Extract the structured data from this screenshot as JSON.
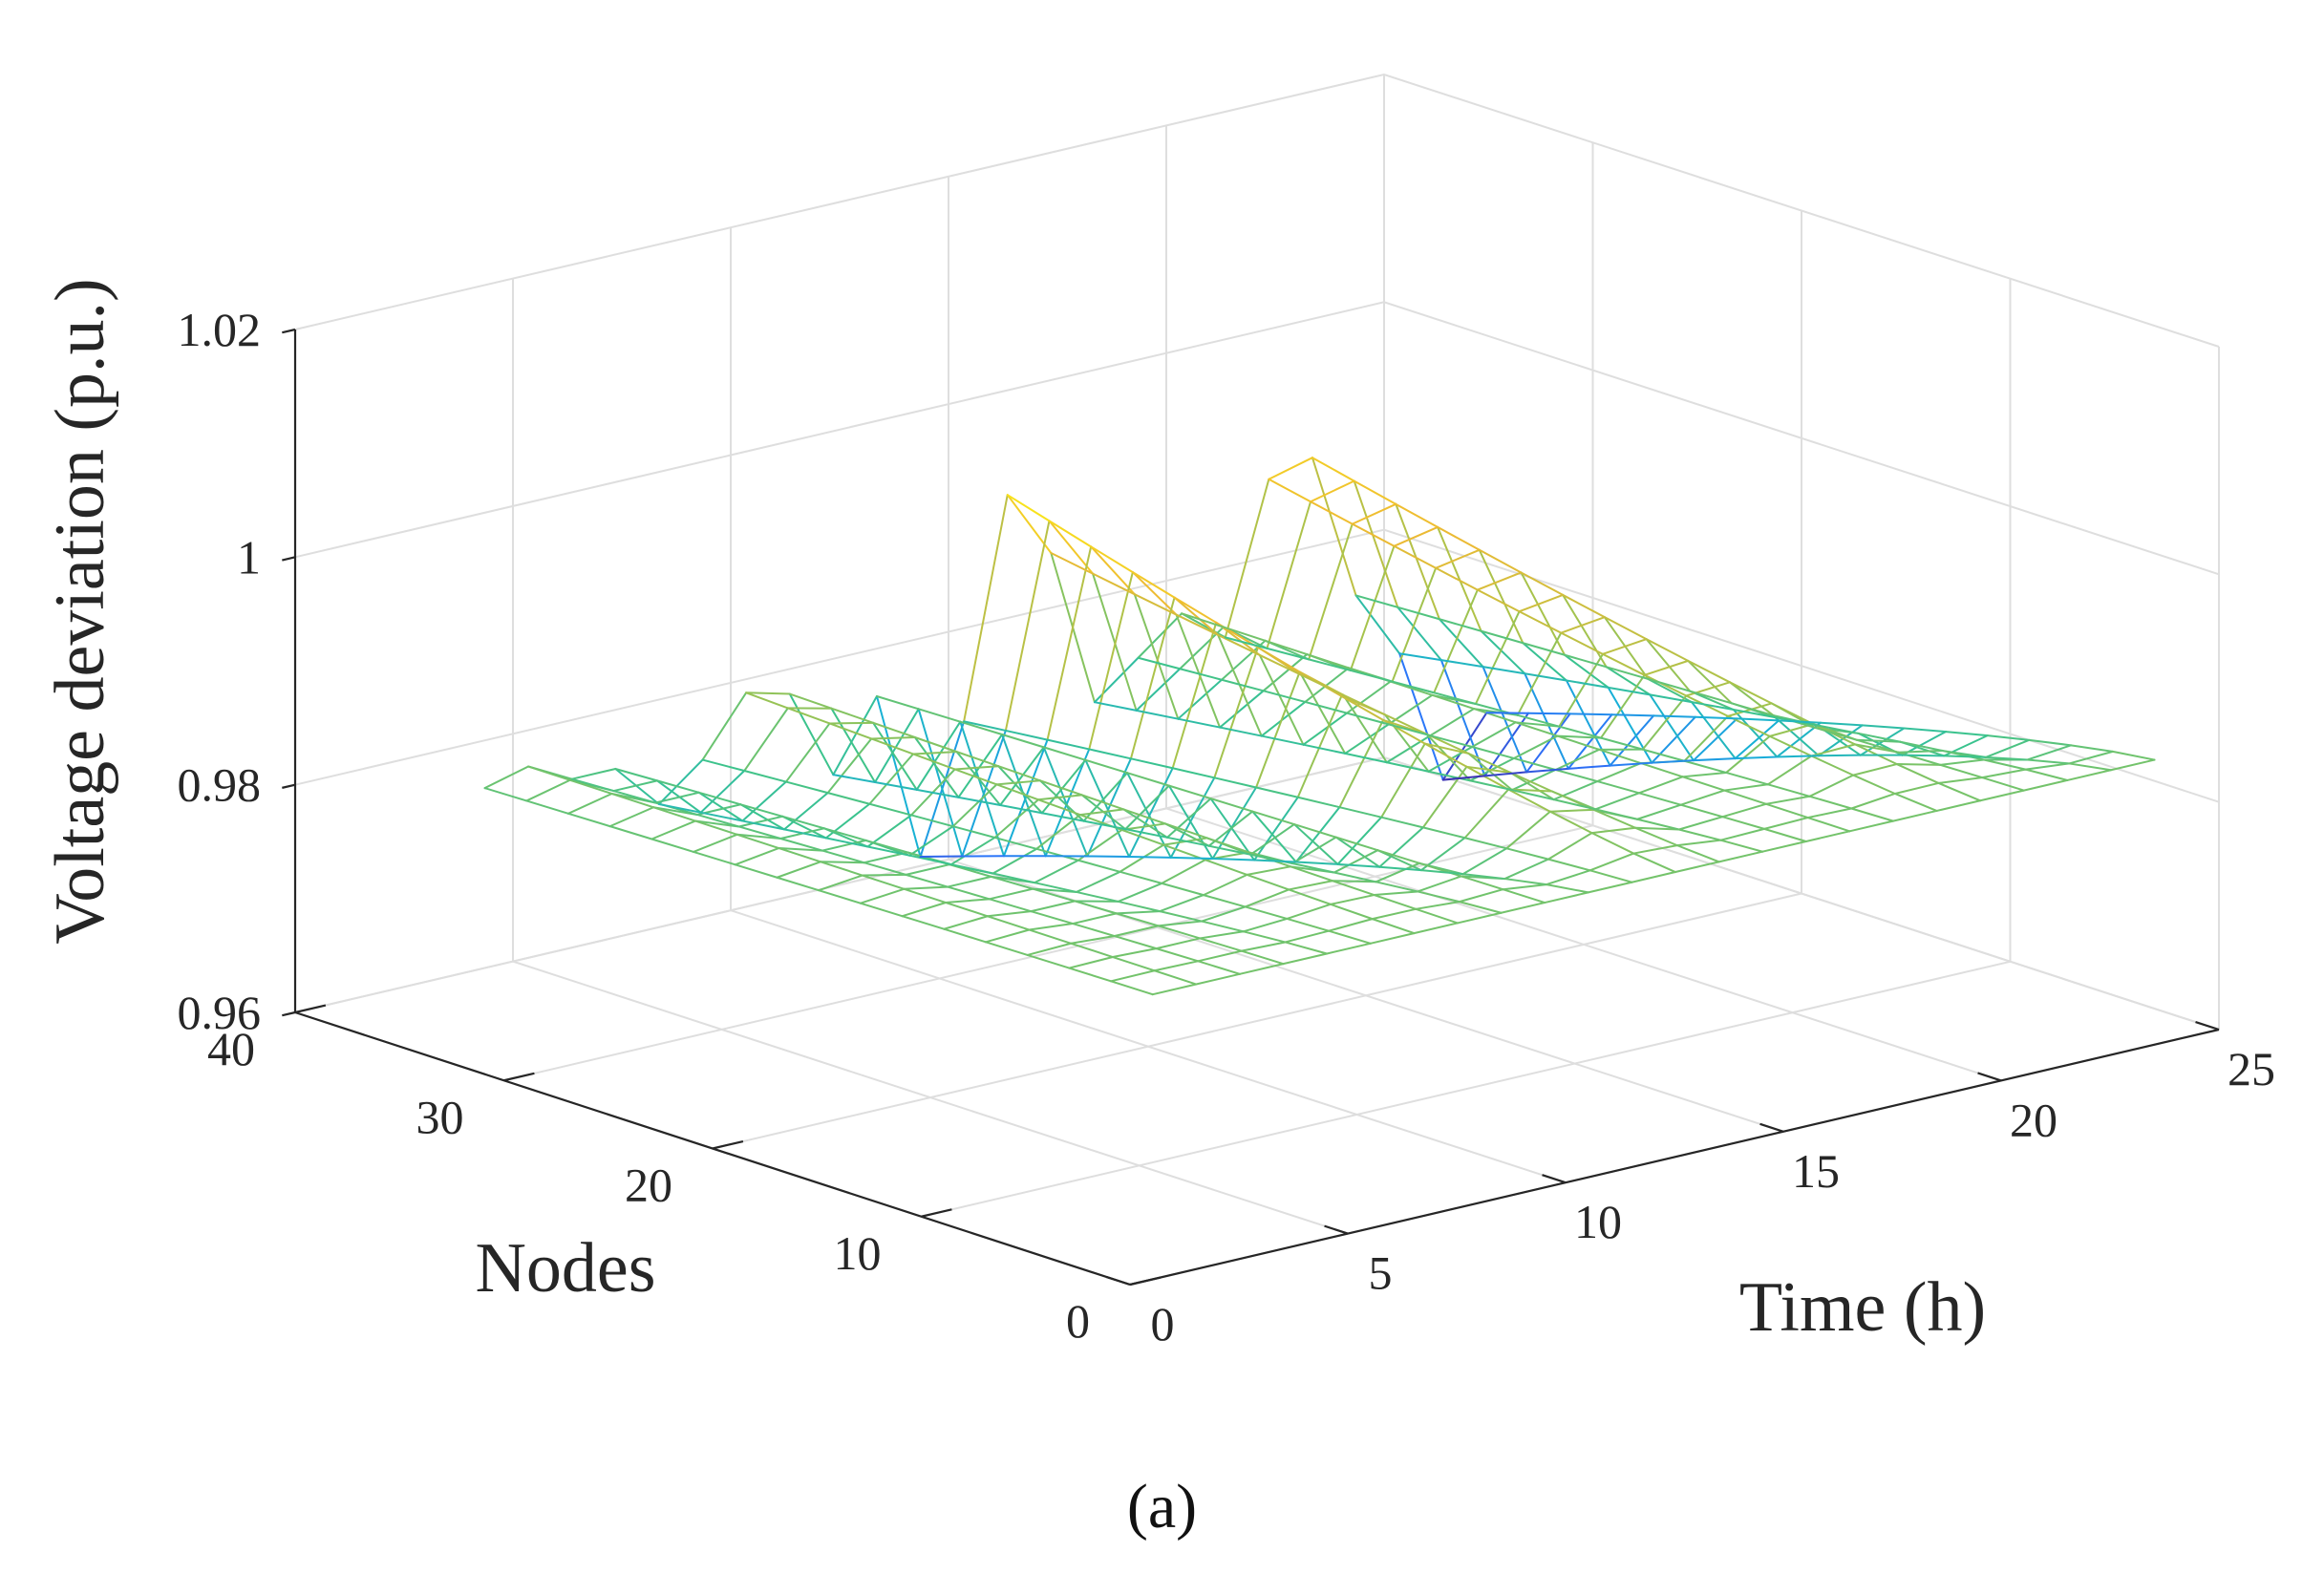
{
  "chart_data": {
    "type": "surface-mesh",
    "title": "",
    "xlabel": "Time (h)",
    "ylabel": "Nodes",
    "zlabel": "Voltage deviation (p.u.)",
    "xlim": [
      0,
      25
    ],
    "ylim": [
      0,
      40
    ],
    "zlim": [
      0.96,
      1.02
    ],
    "xticks": [
      0,
      5,
      10,
      15,
      20,
      25
    ],
    "yticks": [
      0,
      10,
      20,
      30,
      40
    ],
    "zticks": [
      0.96,
      0.98,
      1,
      1.02
    ],
    "xtick_labels": [
      "0",
      "5",
      "10",
      "15",
      "20",
      "25"
    ],
    "ytick_labels": [
      "0",
      "10",
      "20",
      "30",
      "40"
    ],
    "ztick_labels": [
      "0.96",
      "0.98",
      "1",
      "1.02"
    ],
    "grid": true,
    "colormap": "parula",
    "colors": [
      "#3e26a8",
      "#2c73fa",
      "#17b0d6",
      "#3bc38d",
      "#a6c34c",
      "#eeba32",
      "#f9e619"
    ],
    "hours": [
      1,
      2,
      3,
      4,
      5,
      6,
      7,
      8,
      9,
      10,
      11,
      12,
      13,
      14,
      15,
      16,
      17,
      18,
      19,
      20,
      21,
      22,
      23,
      24
    ],
    "nodes_range": [
      1,
      33
    ],
    "voltage_node1": [
      0.984,
      0.984,
      0.984,
      0.984,
      0.984,
      0.984,
      0.984,
      0.984,
      0.984,
      0.984,
      0.984,
      0.984,
      0.984,
      0.984,
      0.984,
      0.984,
      0.984,
      0.984,
      0.984,
      0.984,
      0.984,
      0.984,
      0.984,
      0.984
    ],
    "voltage_node33": [
      0.983,
      0.984,
      0.982,
      0.982,
      0.978,
      0.981,
      0.986,
      0.985,
      0.977,
      0.983,
      0.968,
      0.979,
      0.998,
      0.992,
      0.978,
      0.981,
      0.984,
      0.981,
      0.994,
      0.995,
      0.982,
      0.976,
      0.964,
      0.969
    ]
  },
  "caption": "(a)"
}
